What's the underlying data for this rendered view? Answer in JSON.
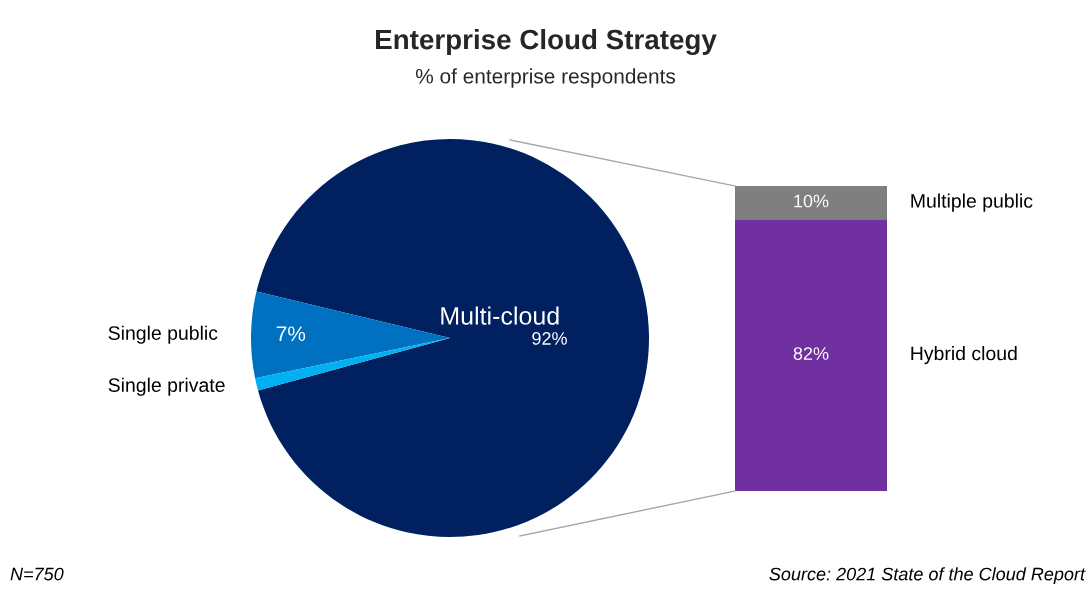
{
  "chart_data": [
    {
      "type": "pie",
      "title": "Enterprise Cloud Strategy",
      "subtitle": "% of enterprise respondents",
      "categories": [
        "Multi-cloud",
        "Single public",
        "Single private"
      ],
      "values": [
        92,
        7,
        1
      ],
      "colors": [
        "#002060",
        "#0070c0",
        "#00b0f0"
      ],
      "value_labels": [
        "92%",
        "7%",
        null
      ],
      "annotations": [
        "N=750",
        "Source: 2021 State of the Cloud Report"
      ]
    },
    {
      "type": "bar",
      "stacked": true,
      "categories": [
        null
      ],
      "ylim": [
        0,
        92
      ],
      "series": [
        {
          "name": "Hybrid cloud",
          "color": "#7030a0",
          "values": [
            82
          ],
          "value_labels": [
            "82%"
          ]
        },
        {
          "name": "Multiple public",
          "color": "#7f7f7f",
          "values": [
            10
          ],
          "value_labels": [
            "10%"
          ]
        }
      ]
    }
  ]
}
